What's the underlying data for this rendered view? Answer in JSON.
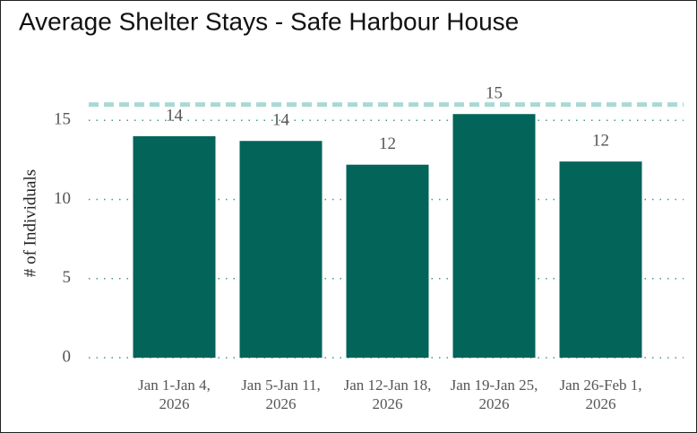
{
  "chart_data": {
    "type": "bar",
    "title": "Average Shelter Stays - Safe Harbour House",
    "y_label": "# of Individuals",
    "categories": [
      "Jan 1-Jan 4, 2026",
      "Jan 5-Jan 11, 2026",
      "Jan 12-Jan 18, 2026",
      "Jan 19-Jan 25, 2026",
      "Jan 26-Feb 1, 2026"
    ],
    "values": [
      14.0,
      13.7,
      12.2,
      15.4,
      12.4
    ],
    "value_labels": [
      "14",
      "14",
      "12",
      "15",
      "12"
    ],
    "color": "#03645a",
    "reference_line": {
      "value": 16,
      "color": "#a9d9d6"
    },
    "ylim": [
      0,
      17
    ],
    "yticks": [
      0,
      5,
      10,
      15
    ],
    "grid": true,
    "grid_color": "#3a9d90"
  }
}
